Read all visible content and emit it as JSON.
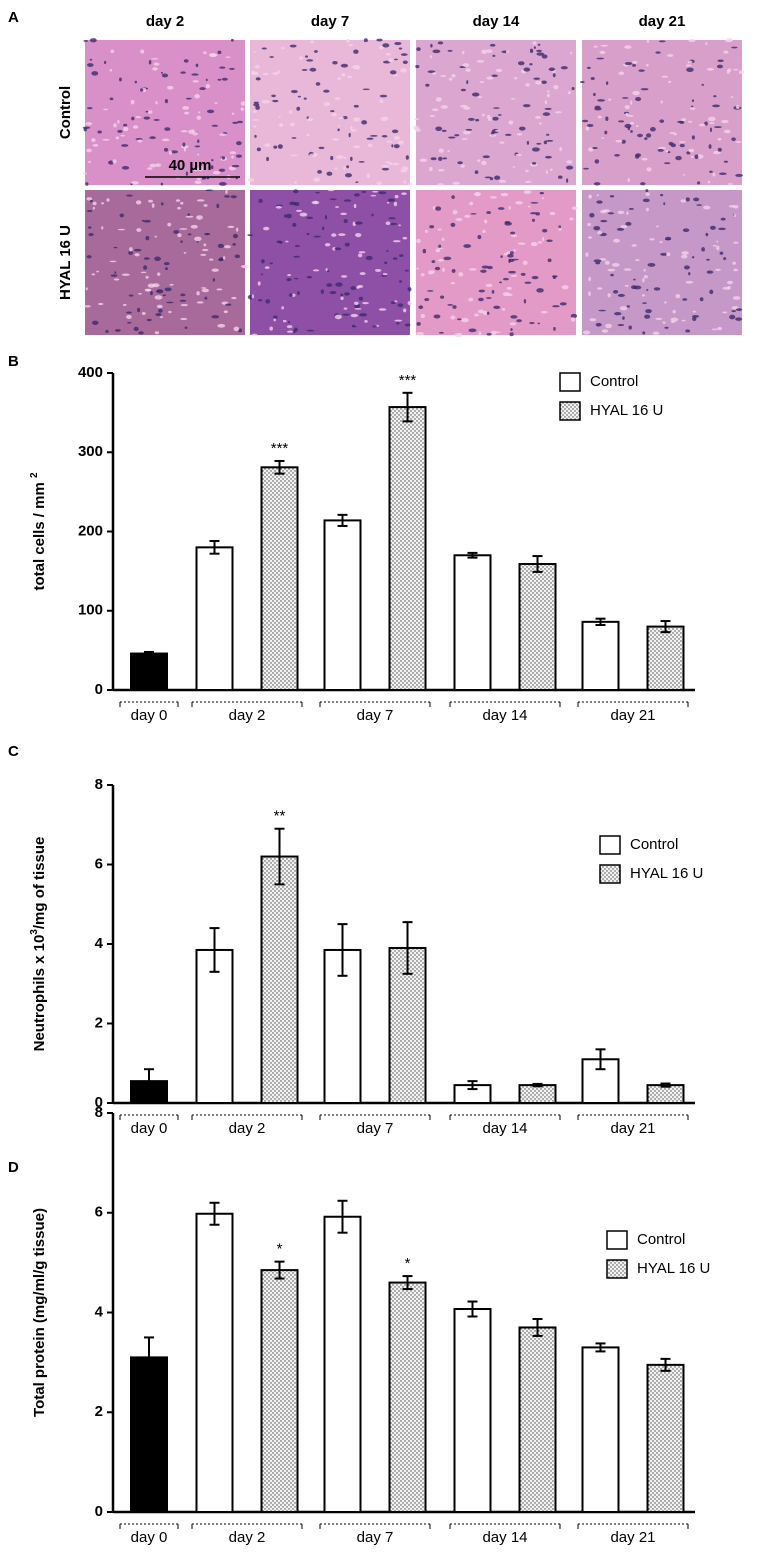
{
  "panel_a": {
    "panel": "A",
    "columns": [
      "day 2",
      "day 7",
      "day 14",
      "day 21"
    ],
    "rows": [
      "Control",
      "HYAL 16 U"
    ],
    "scale_bar": "40 µm"
  },
  "chart_data": [
    {
      "type": "bar",
      "panel": "B",
      "ylabel_parts": [
        {
          "text": "total cells / mm "
        },
        {
          "text": "2",
          "sup": true
        }
      ],
      "categories": [
        "day 0",
        "day 2",
        "day 7",
        "day 14",
        "day 21"
      ],
      "series": [
        {
          "color": "#000000",
          "values": [
            46,
            null,
            null,
            null,
            null
          ],
          "errors": [
            2,
            null,
            null,
            null,
            null
          ]
        },
        {
          "name": "Control",
          "color": "#ffffff",
          "values": [
            null,
            180,
            214,
            170,
            86
          ],
          "errors": [
            null,
            8,
            7,
            3,
            4
          ]
        },
        {
          "name": "HYAL 16 U",
          "color": "#ffffff",
          "pattern": "dots",
          "values": [
            null,
            281,
            357,
            159,
            80
          ],
          "errors": [
            null,
            8,
            18,
            10,
            7
          ],
          "significance": [
            null,
            "***",
            "***",
            null,
            null
          ]
        }
      ],
      "ylim": [
        0,
        400
      ],
      "yticks": [
        0,
        100,
        200,
        300,
        400
      ],
      "legend": "top-right"
    },
    {
      "type": "bar",
      "panel": "C",
      "ylabel_parts": [
        {
          "text": "Neutrophils x 10"
        },
        {
          "text": "3",
          "sup": true
        },
        {
          "text": "/mg of tissue"
        }
      ],
      "categories": [
        "day 0",
        "day 2",
        "day 7",
        "day 14",
        "day 21"
      ],
      "series": [
        {
          "color": "#000000",
          "values": [
            0.55,
            null,
            null,
            null,
            null
          ],
          "errors": [
            0.3,
            null,
            null,
            null,
            null
          ]
        },
        {
          "name": "Control",
          "color": "#ffffff",
          "values": [
            null,
            3.85,
            3.85,
            0.45,
            1.1
          ],
          "errors": [
            null,
            0.55,
            0.65,
            0.1,
            0.25
          ]
        },
        {
          "name": "HYAL 16 U",
          "color": "#ffffff",
          "pattern": "dots",
          "values": [
            null,
            6.2,
            3.9,
            0.45,
            0.45
          ],
          "errors": [
            null,
            0.7,
            0.65,
            0.03,
            0.04
          ],
          "significance": [
            null,
            "**",
            null,
            null,
            null
          ]
        }
      ],
      "ylim": [
        0,
        8
      ],
      "yticks": [
        0,
        2,
        4,
        6,
        8
      ],
      "legend": "right"
    },
    {
      "type": "bar",
      "panel": "D",
      "ylabel_parts": [
        {
          "text": "Total protein (mg/ml/g tissue)"
        }
      ],
      "categories": [
        "day 0",
        "day 2",
        "day 7",
        "day 14",
        "day 21"
      ],
      "series": [
        {
          "color": "#000000",
          "values": [
            3.1,
            null,
            null,
            null,
            null
          ],
          "errors": [
            0.4,
            null,
            null,
            null,
            null
          ]
        },
        {
          "name": "Control",
          "color": "#ffffff",
          "values": [
            null,
            5.98,
            5.92,
            4.07,
            3.3
          ],
          "errors": [
            null,
            0.22,
            0.32,
            0.15,
            0.08
          ]
        },
        {
          "name": "HYAL 16 U",
          "color": "#ffffff",
          "pattern": "dots",
          "values": [
            null,
            4.85,
            4.6,
            3.7,
            2.95
          ],
          "errors": [
            null,
            0.17,
            0.13,
            0.17,
            0.12
          ],
          "significance": [
            null,
            "*",
            "*",
            null,
            null
          ]
        }
      ],
      "ylim": [
        0,
        8
      ],
      "yticks": [
        0,
        2,
        4,
        6,
        8
      ],
      "legend": "right"
    }
  ]
}
